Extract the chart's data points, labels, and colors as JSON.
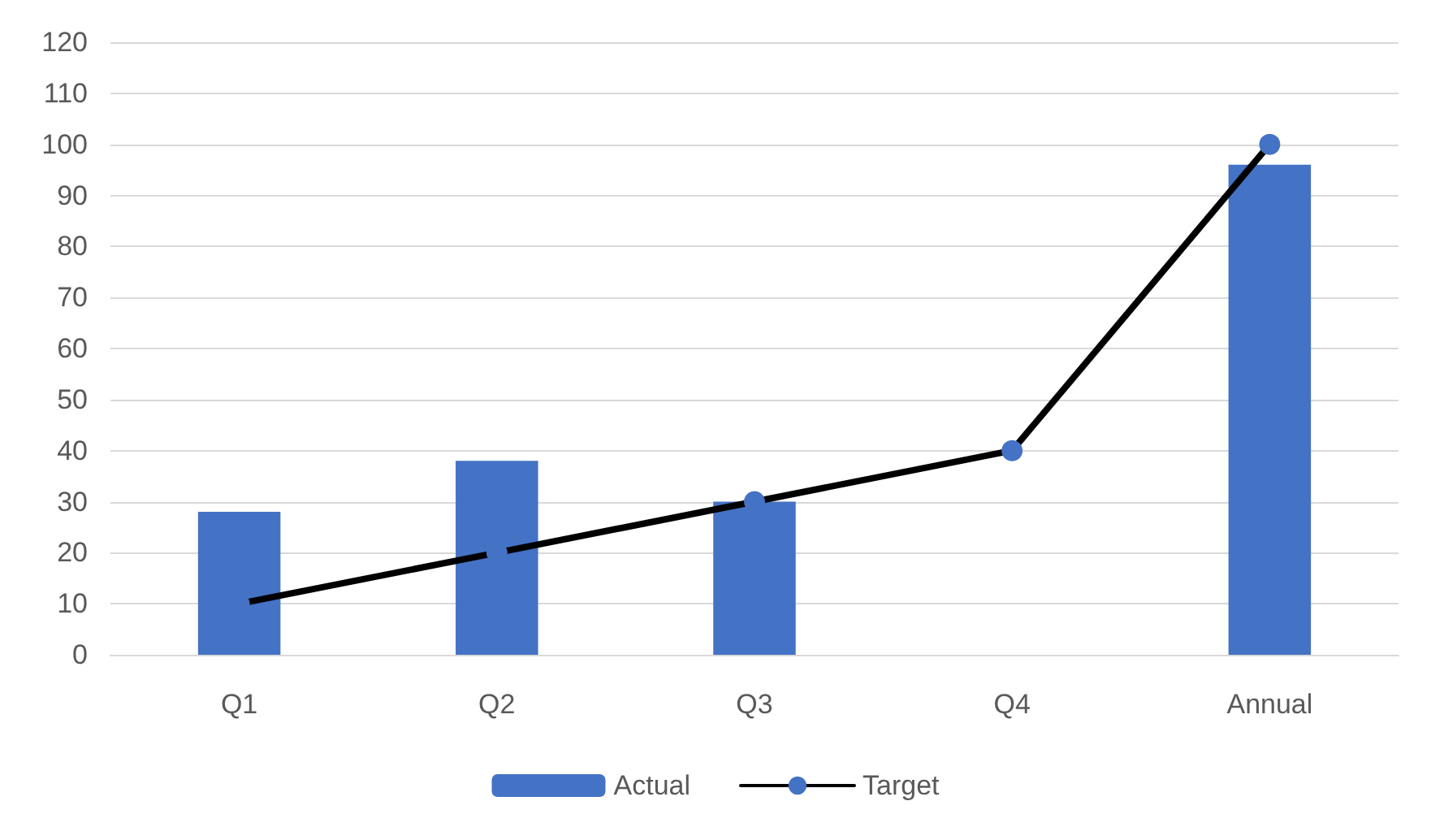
{
  "chart_data": {
    "type": "bar",
    "categories": [
      "Q1",
      "Q2",
      "Q3",
      "Q4",
      "Annual"
    ],
    "series": [
      {
        "name": "Actual",
        "color": "#4472c4",
        "values": [
          28,
          38,
          30,
          null,
          96
        ]
      },
      {
        "name": "Target",
        "type": "line",
        "color": "#000000",
        "values": [
          10,
          20,
          30,
          40,
          100
        ]
      }
    ],
    "ylim": [
      0,
      120
    ],
    "yticks": [
      0,
      10,
      20,
      30,
      40,
      50,
      60,
      70,
      80,
      90,
      100,
      110,
      120
    ],
    "grid": "y",
    "legend": "bottom",
    "marker": "circle",
    "line_style": "solid"
  }
}
